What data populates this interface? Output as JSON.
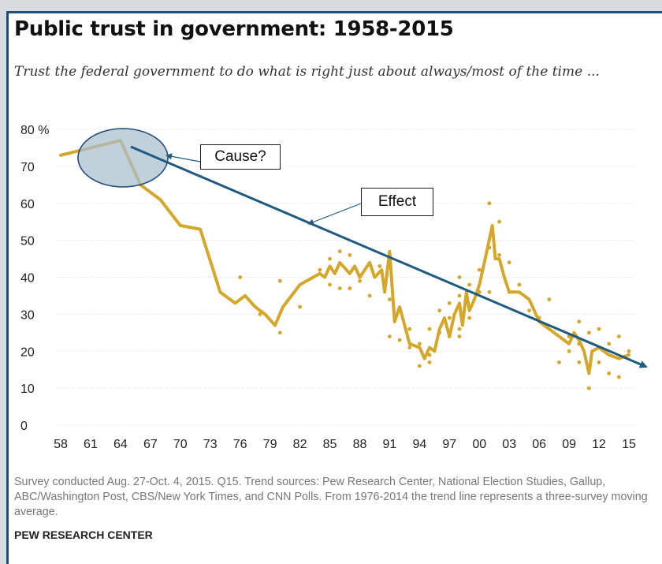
{
  "title": "Public trust in government: 1958-2015",
  "subtitle": "Trust the federal government to do what is right just about always/most of the time ...",
  "footnote": "Survey conducted Aug. 27-Oct. 4, 2015. Q15. Trend sources: Pew Research Center, National Election Studies, Gallup, ABC/Washington Post, CBS/New York Times, and CNN Polls. From 1976-2014 the trend line represents a three-survey moving average.",
  "source": "PEW RESEARCH CENTER",
  "annotations": {
    "cause": "Cause?",
    "effect": "Effect"
  },
  "colors": {
    "series": "#d4a62a",
    "arrow": "#1f5a80",
    "ellipse_fill": "#a9bfce",
    "ellipse_stroke": "#1f4e79",
    "grid": "#d8d8d8"
  },
  "chart_data": {
    "type": "line",
    "xlim": [
      1958,
      2016
    ],
    "ylim": [
      0,
      80
    ],
    "y_ticks": [
      0,
      10,
      20,
      30,
      40,
      50,
      60,
      70,
      80
    ],
    "y_tick_labels": [
      "0",
      "10",
      "20",
      "30",
      "40",
      "50",
      "60",
      "70",
      "80 %"
    ],
    "x_ticks": [
      1958,
      1961,
      1964,
      1967,
      1970,
      1973,
      1976,
      1979,
      1982,
      1985,
      1988,
      1991,
      1994,
      1997,
      2000,
      2003,
      2006,
      2009,
      2012,
      2015
    ],
    "x_tick_labels": [
      "58",
      "61",
      "64",
      "67",
      "70",
      "73",
      "76",
      "79",
      "82",
      "85",
      "88",
      "91",
      "94",
      "97",
      "00",
      "03",
      "06",
      "09",
      "12",
      "15"
    ],
    "grid": true,
    "series": [
      {
        "kind": "trend-line",
        "points": [
          [
            1958,
            73
          ],
          [
            1964,
            77
          ],
          [
            1966,
            65
          ],
          [
            1968,
            61
          ],
          [
            1970,
            54
          ],
          [
            1972,
            53
          ],
          [
            1974,
            36
          ],
          [
            1975.5,
            33
          ],
          [
            1976.5,
            35
          ],
          [
            1977.5,
            32
          ],
          [
            1978.5,
            30
          ],
          [
            1979.5,
            27
          ],
          [
            1980.3,
            32
          ],
          [
            1982,
            38
          ],
          [
            1984,
            41
          ],
          [
            1984.5,
            40
          ],
          [
            1985,
            43
          ],
          [
            1985.5,
            41
          ],
          [
            1986,
            44
          ],
          [
            1987,
            41
          ],
          [
            1987.5,
            43
          ],
          [
            1988,
            40
          ],
          [
            1989,
            44
          ],
          [
            1989.5,
            40
          ],
          [
            1990.2,
            42
          ],
          [
            1990.5,
            36
          ],
          [
            1991,
            47
          ],
          [
            1991.5,
            28
          ],
          [
            1992,
            32
          ],
          [
            1992.5,
            27
          ],
          [
            1993,
            22
          ],
          [
            1994,
            21
          ],
          [
            1994.5,
            18
          ],
          [
            1995,
            21
          ],
          [
            1995.5,
            20
          ],
          [
            1996,
            26
          ],
          [
            1996.5,
            29
          ],
          [
            1997,
            24
          ],
          [
            1997.5,
            30
          ],
          [
            1998,
            33
          ],
          [
            1998.3,
            27
          ],
          [
            1998.7,
            36
          ],
          [
            1999,
            31
          ],
          [
            1999.5,
            34
          ],
          [
            2000,
            38
          ],
          [
            2000.5,
            44
          ],
          [
            2001.3,
            54
          ],
          [
            2001.6,
            45
          ],
          [
            2002,
            45
          ],
          [
            2002.5,
            40
          ],
          [
            2003,
            36
          ],
          [
            2004,
            36
          ],
          [
            2005,
            34
          ],
          [
            2006,
            28
          ],
          [
            2007,
            26
          ],
          [
            2008,
            24
          ],
          [
            2009,
            22
          ],
          [
            2009.5,
            25
          ],
          [
            2010,
            23
          ],
          [
            2010.5,
            20
          ],
          [
            2011,
            14
          ],
          [
            2011.3,
            20
          ],
          [
            2012,
            21
          ],
          [
            2012.5,
            20
          ],
          [
            2013,
            19
          ],
          [
            2014,
            18
          ],
          [
            2015,
            19
          ]
        ]
      },
      {
        "kind": "survey-dots",
        "points": [
          [
            1976,
            40
          ],
          [
            1978,
            30
          ],
          [
            1980,
            39
          ],
          [
            1980,
            25
          ],
          [
            1982,
            32
          ],
          [
            1984,
            42
          ],
          [
            1985,
            45
          ],
          [
            1985,
            38
          ],
          [
            1986,
            47
          ],
          [
            1986,
            37
          ],
          [
            1987,
            46
          ],
          [
            1987,
            37
          ],
          [
            1988,
            39
          ],
          [
            1989,
            35
          ],
          [
            1990,
            43
          ],
          [
            1991,
            34
          ],
          [
            1991,
            46
          ],
          [
            1991,
            24
          ],
          [
            1992,
            31
          ],
          [
            1992,
            23
          ],
          [
            1993,
            21
          ],
          [
            1993,
            26
          ],
          [
            1994,
            16
          ],
          [
            1994,
            22
          ],
          [
            1995,
            17
          ],
          [
            1995,
            19
          ],
          [
            1995,
            26
          ],
          [
            1996,
            31
          ],
          [
            1996,
            25
          ],
          [
            1997,
            33
          ],
          [
            1997,
            24
          ],
          [
            1997,
            29
          ],
          [
            1998,
            40
          ],
          [
            1998,
            35
          ],
          [
            1998,
            26
          ],
          [
            1998,
            24
          ],
          [
            1999,
            38
          ],
          [
            1999,
            32
          ],
          [
            1999,
            29
          ],
          [
            2000,
            42
          ],
          [
            2000,
            36
          ],
          [
            2001,
            60
          ],
          [
            2001,
            48
          ],
          [
            2001,
            36
          ],
          [
            2002,
            55
          ],
          [
            2002,
            46
          ],
          [
            2003,
            44
          ],
          [
            2003,
            36
          ],
          [
            2004,
            38
          ],
          [
            2005,
            31
          ],
          [
            2006,
            29
          ],
          [
            2007,
            34
          ],
          [
            2008,
            17
          ],
          [
            2009,
            24
          ],
          [
            2009,
            20
          ],
          [
            2010,
            28
          ],
          [
            2010,
            22
          ],
          [
            2010,
            17
          ],
          [
            2011,
            10
          ],
          [
            2011,
            25
          ],
          [
            2012,
            26
          ],
          [
            2012,
            17
          ],
          [
            2013,
            22
          ],
          [
            2013,
            14
          ],
          [
            2014,
            24
          ],
          [
            2014,
            13
          ],
          [
            2015,
            20
          ]
        ]
      }
    ]
  }
}
